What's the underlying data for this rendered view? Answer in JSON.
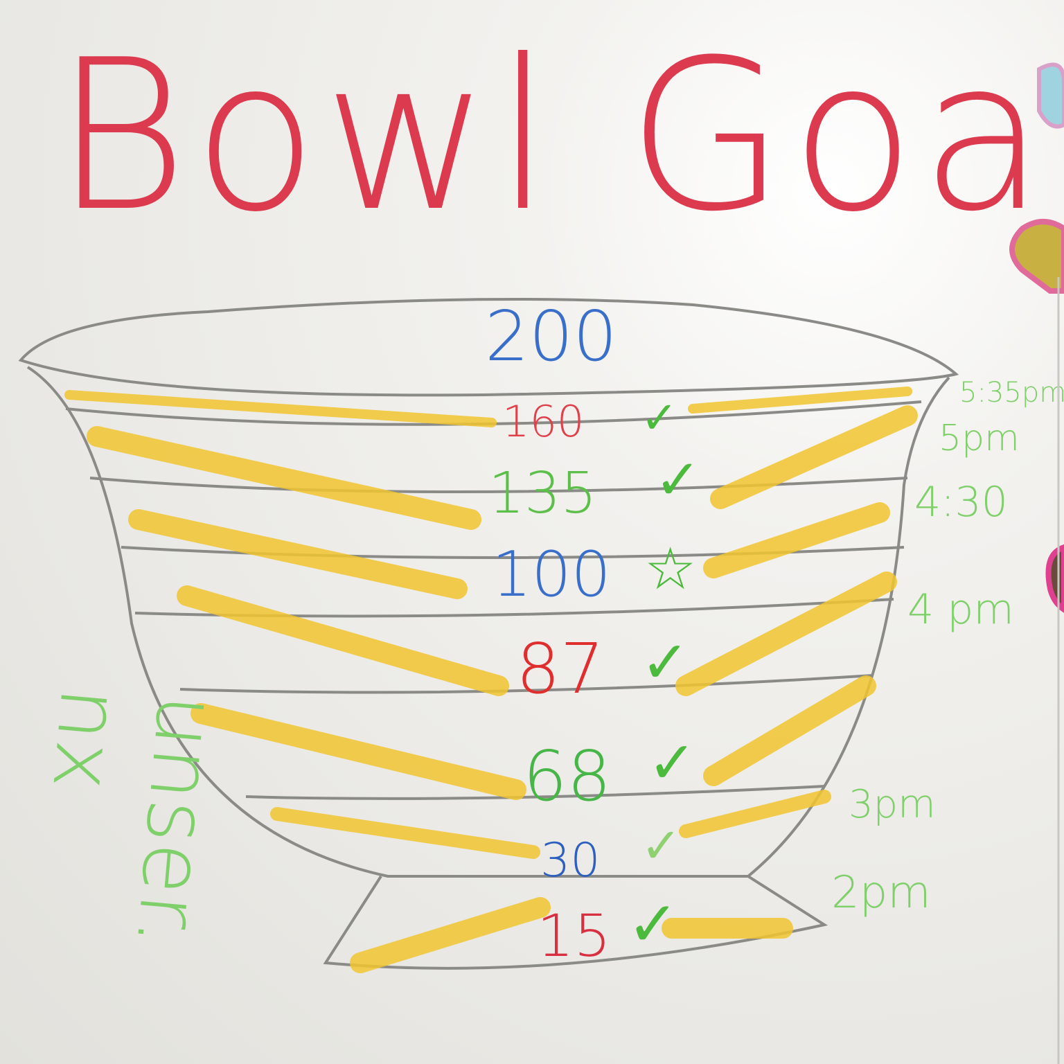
{
  "title": "Bowl Goals!",
  "top_value": "200",
  "levels": [
    {
      "value": "160",
      "mark": "✓",
      "time": "5:35pm",
      "color": "#e0404a"
    },
    {
      "value": "135",
      "mark": "✓",
      "time": "5pm",
      "color": "#5cbf4a"
    },
    {
      "value": "100",
      "mark": "☆",
      "time": "4:30",
      "color": "#3a6fc9"
    },
    {
      "value": "87",
      "mark": "✓",
      "time": "4 pm",
      "color": "#e02e2e"
    },
    {
      "value": "68",
      "mark": "✓",
      "time": "",
      "color": "#48b548"
    },
    {
      "value": "30",
      "mark": "✓",
      "time": "3pm",
      "color": "#2d5fc0"
    },
    {
      "value": "15",
      "mark": "✓",
      "time": "2pm",
      "color": "#d83040"
    }
  ],
  "side_note": [
    "unser.",
    "nx"
  ],
  "colors": {
    "title": "#dc3a4e",
    "fill": "#f2c531",
    "check": "#4cba3c",
    "time": "#7fcf6a",
    "outline": "#8a8a86"
  }
}
